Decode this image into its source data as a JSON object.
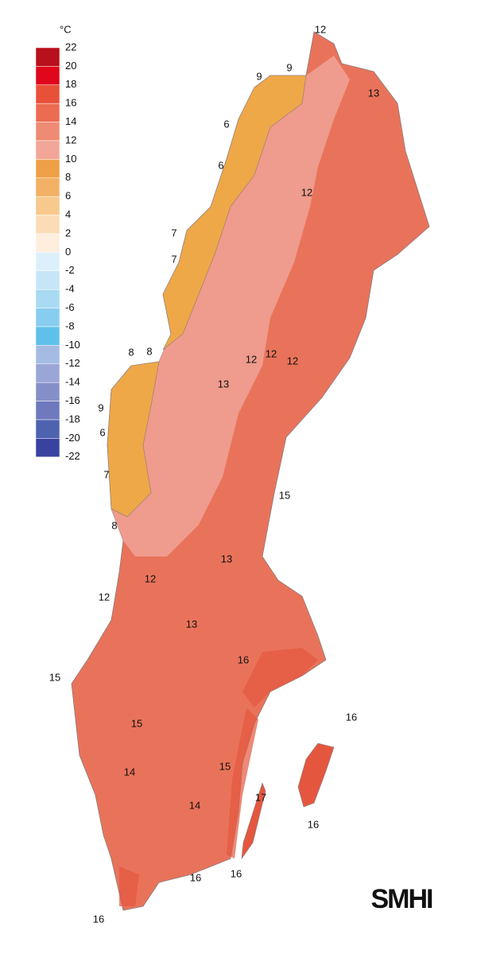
{
  "legend": {
    "unit": "°C",
    "ticks": [
      22,
      20,
      18,
      16,
      14,
      12,
      10,
      8,
      6,
      4,
      2,
      0,
      -2,
      -4,
      -6,
      -8,
      -10,
      -12,
      -14,
      -16,
      -18,
      -20,
      -22
    ],
    "colors": [
      "#b8101c",
      "#e0071a",
      "#e9503a",
      "#ec6c52",
      "#ef8a74",
      "#f2a697",
      "#efa046",
      "#f3b165",
      "#f7c98c",
      "#fbdcb8",
      "#fdeedd",
      "#dcf0fb",
      "#c6e6f7",
      "#a9daf3",
      "#88cdef",
      "#5fc1ea",
      "#a4bbe2",
      "#9aa6d6",
      "#8690c8",
      "#6e7abd",
      "#4f62b0",
      "#3a42a0"
    ]
  },
  "contour_labels": [
    12,
    9,
    9,
    13,
    6,
    6,
    12,
    7,
    7,
    8,
    8,
    12,
    12,
    12,
    13,
    9,
    6,
    7,
    15,
    8,
    13,
    12,
    12,
    13,
    16,
    15,
    16,
    15,
    14,
    15,
    17,
    14,
    16,
    16,
    16,
    16
  ],
  "logo": "SMHI"
}
